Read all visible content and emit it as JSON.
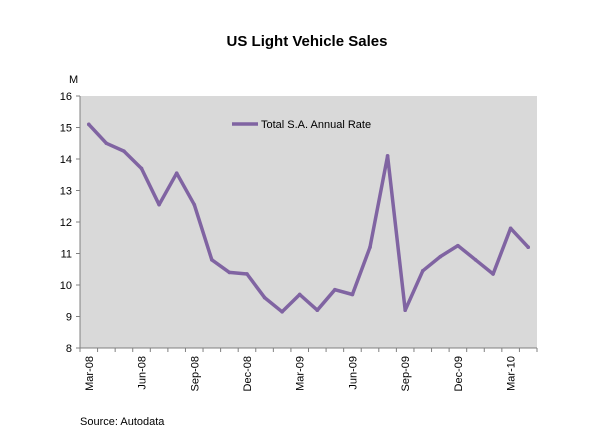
{
  "chart_data": {
    "type": "line",
    "title": "US Light Vehicle Sales",
    "ylabel": "M",
    "xlabel": "",
    "ylim": [
      8,
      16
    ],
    "yticks": [
      8,
      9,
      10,
      11,
      12,
      13,
      14,
      15,
      16
    ],
    "grid": false,
    "legend_position": "top-center",
    "plot_background": "#d9d9d9",
    "x": [
      "Mar-08",
      "Apr-08",
      "May-08",
      "Jun-08",
      "Jul-08",
      "Aug-08",
      "Sep-08",
      "Oct-08",
      "Nov-08",
      "Dec-08",
      "Jan-09",
      "Feb-09",
      "Mar-09",
      "Apr-09",
      "May-09",
      "Jun-09",
      "Jul-09",
      "Aug-09",
      "Sep-09",
      "Oct-09",
      "Nov-09",
      "Dec-09",
      "Jan-10",
      "Feb-10",
      "Mar-10",
      "Apr-10"
    ],
    "x_tick_labels": [
      "Mar-08",
      "Jun-08",
      "Sep-08",
      "Dec-08",
      "Mar-09",
      "Jun-09",
      "Sep-09",
      "Dec-09",
      "Mar-10"
    ],
    "series": [
      {
        "name": "Total S.A. Annual Rate",
        "color": "#8064a2",
        "values": [
          15.1,
          14.5,
          14.25,
          13.7,
          12.55,
          13.55,
          12.55,
          10.8,
          10.4,
          10.35,
          9.6,
          9.15,
          9.7,
          9.2,
          9.85,
          9.7,
          11.2,
          14.1,
          9.2,
          10.45,
          10.9,
          11.25,
          10.8,
          10.35,
          11.8,
          11.2
        ]
      }
    ]
  },
  "source": "Source: Autodata"
}
